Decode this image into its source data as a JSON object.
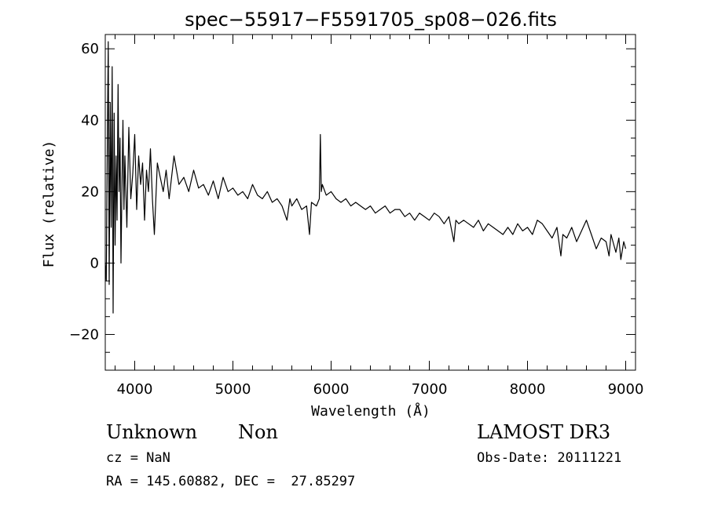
{
  "chart_data": {
    "type": "line",
    "title": "spec−55917−F5591705_sp08−026.fits",
    "xlabel": "Wavelength (Å)",
    "ylabel": "Flux (relative)",
    "xlim": [
      3700,
      9100
    ],
    "ylim": [
      -30,
      64
    ],
    "xticks": [
      4000,
      5000,
      6000,
      7000,
      8000,
      9000
    ],
    "xtick_labels": [
      "4000",
      "5000",
      "6000",
      "7000",
      "8000",
      "9000"
    ],
    "yticks": [
      -20,
      0,
      20,
      40,
      60
    ],
    "ytick_labels": [
      "−20",
      "0",
      "20",
      "40",
      "60"
    ],
    "series": [
      {
        "name": "flux",
        "x": [
          3700,
          3710,
          3720,
          3730,
          3740,
          3750,
          3760,
          3770,
          3780,
          3790,
          3800,
          3810,
          3820,
          3830,
          3840,
          3850,
          3860,
          3870,
          3880,
          3890,
          3900,
          3920,
          3940,
          3960,
          3980,
          4000,
          4020,
          4040,
          4060,
          4080,
          4100,
          4120,
          4140,
          4160,
          4180,
          4200,
          4230,
          4260,
          4290,
          4320,
          4350,
          4400,
          4450,
          4500,
          4550,
          4600,
          4650,
          4700,
          4750,
          4800,
          4850,
          4900,
          4950,
          5000,
          5050,
          5100,
          5150,
          5200,
          5250,
          5300,
          5350,
          5400,
          5450,
          5500,
          5550,
          5580,
          5600,
          5650,
          5700,
          5750,
          5780,
          5800,
          5850,
          5880,
          5890,
          5900,
          5910,
          5950,
          6000,
          6050,
          6100,
          6150,
          6200,
          6250,
          6300,
          6350,
          6400,
          6450,
          6500,
          6550,
          6600,
          6650,
          6700,
          6750,
          6800,
          6850,
          6900,
          6950,
          7000,
          7050,
          7100,
          7150,
          7200,
          7250,
          7270,
          7300,
          7350,
          7400,
          7450,
          7500,
          7550,
          7600,
          7650,
          7700,
          7750,
          7800,
          7850,
          7900,
          7950,
          8000,
          8050,
          8100,
          8150,
          8200,
          8250,
          8300,
          8340,
          8360,
          8400,
          8450,
          8500,
          8550,
          8600,
          8650,
          8700,
          8750,
          8800,
          8830,
          8850,
          8880,
          8900,
          8930,
          8950,
          8980,
          9000
        ],
        "y": [
          0,
          -5,
          30,
          62,
          -6,
          45,
          10,
          55,
          -14,
          42,
          5,
          30,
          12,
          50,
          20,
          35,
          0,
          22,
          40,
          15,
          30,
          10,
          38,
          18,
          25,
          36,
          15,
          30,
          22,
          28,
          12,
          26,
          20,
          32,
          18,
          8,
          28,
          24,
          20,
          26,
          18,
          30,
          22,
          24,
          20,
          26,
          21,
          22,
          19,
          23,
          18,
          24,
          20,
          21,
          19,
          20,
          18,
          22,
          19,
          18,
          20,
          17,
          18,
          16,
          12,
          18,
          16,
          18,
          15,
          16,
          8,
          17,
          16,
          18,
          36,
          20,
          22,
          19,
          20,
          18,
          17,
          18,
          16,
          17,
          16,
          15,
          16,
          14,
          15,
          16,
          14,
          15,
          15,
          13,
          14,
          12,
          14,
          13,
          12,
          14,
          13,
          11,
          13,
          6,
          12,
          11,
          12,
          11,
          10,
          12,
          9,
          11,
          10,
          9,
          8,
          10,
          8,
          11,
          9,
          10,
          8,
          12,
          11,
          9,
          7,
          10,
          2,
          8,
          7,
          10,
          6,
          9,
          12,
          8,
          4,
          7,
          6,
          2,
          8,
          5,
          3,
          7,
          1,
          6,
          4
        ]
      }
    ]
  },
  "info": {
    "object_class": "Unknown",
    "object_subclass": "Non",
    "survey": "LAMOST DR3",
    "redshift": "cz = NaN",
    "obs_date": "Obs-Date: 20111221",
    "coords": "RA = 145.60882, DEC =  27.85297"
  }
}
